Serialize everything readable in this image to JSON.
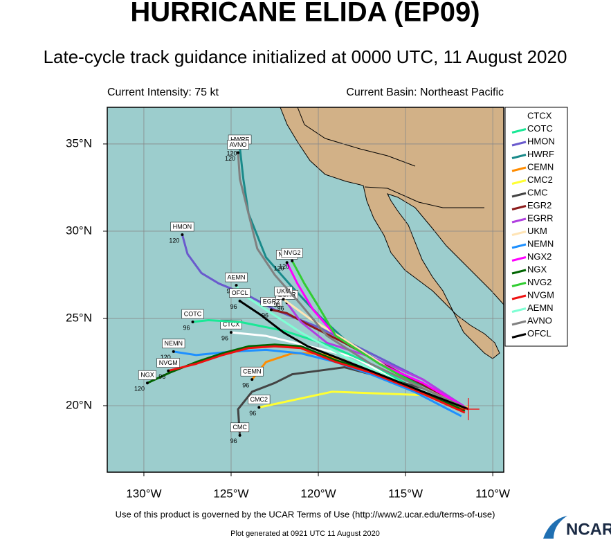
{
  "header": {
    "title": "HURRICANE ELIDA (EP09)",
    "subtitle": "Late-cycle track guidance initialized at 0000 UTC, 11 August 2020",
    "intensity": "Current Intensity: 75 kt",
    "basin": "Current Basin: Northeast Pacific"
  },
  "map": {
    "lon_range": [
      -132.1,
      -109.37
    ],
    "lat_range": [
      16.19,
      37.1
    ],
    "lon_ticks": [
      {
        "value": -130,
        "label": "130°W"
      },
      {
        "value": -125,
        "label": "125°W"
      },
      {
        "value": -120,
        "label": "120°W"
      },
      {
        "value": -115,
        "label": "115°W"
      },
      {
        "value": -110,
        "label": "110°W"
      }
    ],
    "lat_ticks": [
      {
        "value": 20,
        "label": "20°N"
      },
      {
        "value": 25,
        "label": "25°N"
      },
      {
        "value": 30,
        "label": "30°N"
      },
      {
        "value": 35,
        "label": "35°N"
      }
    ]
  },
  "storm": {
    "lon": -111.4,
    "lat": 19.8,
    "color": "#ff0000"
  },
  "tracks": [
    {
      "name": "CTCX",
      "color": "#ffffff",
      "end_hour": "96",
      "lon": [
        -111.4,
        -115,
        -118,
        -120.5,
        -123,
        -125
      ],
      "lat": [
        19.8,
        21.2,
        22.8,
        23.4,
        24,
        24.2
      ]
    },
    {
      "name": "COTC",
      "color": "#19e896",
      "end_hour": "96",
      "lon": [
        -111.4,
        -114.5,
        -117,
        -119.5,
        -122,
        -124.5,
        -126.3,
        -127.2
      ],
      "lat": [
        19.8,
        21,
        22.4,
        23.5,
        24.3,
        24.8,
        24.9,
        24.8
      ]
    },
    {
      "name": "HMON",
      "color": "#6a5acd",
      "end_hour": "120",
      "lon": [
        -111.4,
        -114,
        -117,
        -120,
        -122.5,
        -124,
        -125.7,
        -126.7,
        -127.5,
        -127.8
      ],
      "lat": [
        19.8,
        21.5,
        23,
        24.5,
        25.5,
        26.3,
        27,
        27.6,
        28.7,
        29.8
      ]
    },
    {
      "name": "HWRF",
      "color": "#1a8a8a",
      "end_hour": "120",
      "lon": [
        -111.4,
        -113.5,
        -116,
        -118.5,
        -120,
        -121.5,
        -123,
        -124,
        -124.3,
        -124.5
      ],
      "lat": [
        19.8,
        20.8,
        22.2,
        23.8,
        25.2,
        26.8,
        28.5,
        31,
        33,
        34.8
      ]
    },
    {
      "name": "CEMN",
      "color": "#ff8c00",
      "end_hour": "96",
      "lon": [
        -111.6,
        -114.5,
        -117,
        -118.5,
        -120,
        -121.5,
        -123,
        -123.8
      ],
      "lat": [
        19.8,
        21,
        21.9,
        22.6,
        23,
        23,
        22.5,
        21.5
      ]
    },
    {
      "name": "CMC2",
      "color": "#ffff33",
      "end_hour": "96",
      "lon": [
        -111.4,
        -113.8,
        -119.2,
        -123.4
      ],
      "lat": [
        19.9,
        20.6,
        20.8,
        19.9
      ]
    },
    {
      "name": "CMC",
      "color": "#444444",
      "end_hour": "96",
      "lon": [
        -111.4,
        -114,
        -117,
        -118.5,
        -120,
        -121.5,
        -122.5,
        -123.8,
        -124.6,
        -124.5
      ],
      "lat": [
        19.8,
        21,
        21.8,
        22.2,
        22,
        21.8,
        21.3,
        20.8,
        19.8,
        18.3
      ]
    },
    {
      "name": "EGR2",
      "color": "#8b1a1a",
      "end_hour": "96",
      "lon": [
        -111.4,
        -114,
        -116.5,
        -118.5,
        -120.5,
        -121.8,
        -122.7
      ],
      "lat": [
        19.8,
        21.2,
        22.5,
        23.6,
        24.6,
        25.3,
        25.5
      ]
    },
    {
      "name": "EGRR",
      "color": "#b040e0",
      "end_hour": "96",
      "lon": [
        -111.4,
        -114,
        -117,
        -119.5,
        -121,
        -121.8
      ],
      "lat": [
        19.8,
        21.5,
        22.8,
        23.6,
        24.8,
        25.9
      ]
    },
    {
      "name": "UKM",
      "color": "#ffe4b5",
      "end_hour": "96",
      "lon": [
        -111.4,
        -115,
        -118.5,
        -120.5,
        -122
      ],
      "lat": [
        19.8,
        21.5,
        23.8,
        25,
        26.1
      ]
    },
    {
      "name": "NEMN",
      "color": "#1e90ff",
      "end_hour": "120",
      "lon": [
        -111.8,
        -114.5,
        -117,
        -119,
        -121,
        -123,
        -125,
        -127,
        -128.3
      ],
      "lat": [
        19.4,
        20.8,
        21.8,
        22.5,
        23,
        23.2,
        23.1,
        22.9,
        23.1
      ]
    },
    {
      "name": "NGX2",
      "color": "#ff00ff",
      "end_hour": "120",
      "lon": [
        -111.4,
        -114,
        -116.5,
        -119,
        -120.3,
        -121.2,
        -121.8
      ],
      "lat": [
        19.8,
        21.3,
        22.4,
        24,
        25.5,
        27,
        28.2
      ]
    },
    {
      "name": "NGX",
      "color": "#006400",
      "end_hour": "120",
      "lon": [
        -111.6,
        -114.5,
        -117,
        -119,
        -121,
        -122.5,
        -124,
        -125.5,
        -127,
        -128.5,
        -129.8
      ],
      "lat": [
        19.7,
        21,
        22,
        22.6,
        23.4,
        23.5,
        23.4,
        23,
        22.5,
        21.9,
        21.3
      ]
    },
    {
      "name": "NVG2",
      "color": "#32cd32",
      "end_hour": "120",
      "lon": [
        -111.4,
        -114,
        -116.5,
        -119,
        -120,
        -120.8,
        -121.5
      ],
      "lat": [
        19.8,
        21,
        22.4,
        24,
        25.7,
        27,
        28.3
      ]
    },
    {
      "name": "NVGM",
      "color": "#ee1111",
      "end_hour": "96",
      "lon": [
        -111.6,
        -114.5,
        -117,
        -119,
        -121,
        -122.5,
        -124,
        -125.5,
        -127,
        -128.6
      ],
      "lat": [
        19.6,
        20.9,
        21.9,
        22.5,
        23.3,
        23.4,
        23.3,
        22.9,
        22.4,
        22
      ]
    },
    {
      "name": "AEMN",
      "color": "#7fffd4",
      "end_hour": "96",
      "lon": [
        -111.4,
        -115,
        -118.5,
        -121,
        -123,
        -124.5,
        -124.7
      ],
      "lat": [
        19.8,
        21.2,
        22.8,
        24.2,
        25.5,
        26.5,
        26.9
      ]
    },
    {
      "name": "AVNO",
      "color": "#808080",
      "end_hour": "120",
      "lon": [
        -111.4,
        -114,
        -117,
        -119.5,
        -121,
        -122.5,
        -123.5,
        -124,
        -124.5,
        -124.6
      ],
      "lat": [
        19.8,
        21,
        22.4,
        24,
        25.8,
        27.5,
        29,
        31,
        33,
        34.5
      ]
    },
    {
      "name": "OFCL",
      "color": "#000000",
      "end_hour": "96",
      "lon": [
        -111.4,
        -114,
        -116.5,
        -118.8,
        -120.6,
        -122,
        -123.3,
        -124.5
      ],
      "lat": [
        19.8,
        20.8,
        21.8,
        22.7,
        23.4,
        24.2,
        25.2,
        26
      ]
    }
  ],
  "footer": {
    "terms": "Use of this product is governed by the UCAR Terms of Use (http://www2.ucar.edu/terms-of-use)",
    "generated": "Plot generated at 0921 UTC   11 August 2020",
    "logo": "NCAR"
  }
}
